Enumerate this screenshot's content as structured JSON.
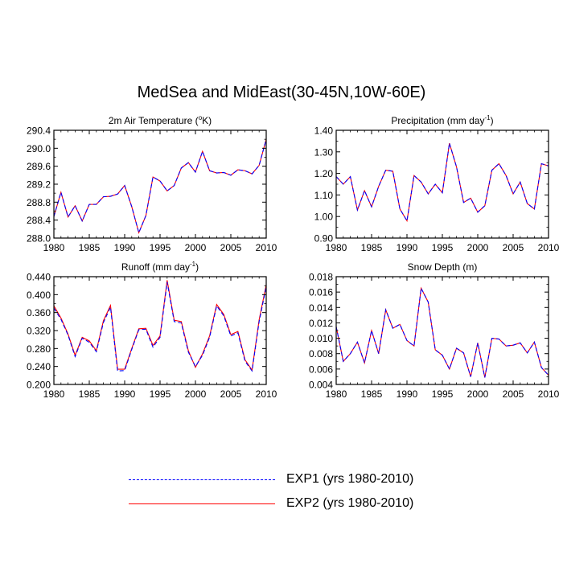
{
  "title": "MedSea and MidEast(30-45N,10W-60E)",
  "colors": {
    "exp1": "#0000ff",
    "exp2": "#ff0000",
    "axis": "#000000"
  },
  "legend": [
    {
      "label": "EXP1 (yrs 1980-2010)",
      "style": "dashed",
      "color": "#0000ff"
    },
    {
      "label": "EXP2 (yrs 1980-2010)",
      "style": "solid",
      "color": "#ff0000"
    }
  ],
  "chart_data": [
    {
      "type": "line",
      "title": "2m Air Temperature (",
      "title_sup": "o",
      "title_end": "K)",
      "xlabel": "",
      "ylabel": "",
      "xlim": [
        1980,
        2010
      ],
      "ylim": [
        288.0,
        290.4
      ],
      "xticks": [
        1980,
        1985,
        1990,
        1995,
        2000,
        2005,
        2010
      ],
      "yticks": [
        288.0,
        288.4,
        288.8,
        289.2,
        289.6,
        290.0,
        290.4
      ],
      "ytick_labels": [
        "288.0",
        "288.4",
        "288.8",
        "289.2",
        "289.6",
        "290.0",
        "290.4"
      ],
      "x": [
        1980,
        1981,
        1982,
        1983,
        1984,
        1985,
        1986,
        1987,
        1988,
        1989,
        1990,
        1991,
        1992,
        1993,
        1994,
        1995,
        1996,
        1997,
        1998,
        1999,
        2000,
        2001,
        2002,
        2003,
        2004,
        2005,
        2006,
        2007,
        2008,
        2009,
        2010
      ],
      "series": [
        {
          "name": "EXP1 (yrs 1980-2010)",
          "values": [
            288.48,
            289.02,
            288.47,
            288.72,
            288.38,
            288.75,
            288.75,
            288.92,
            288.93,
            288.98,
            289.17,
            288.7,
            288.12,
            288.5,
            289.36,
            289.27,
            289.05,
            289.17,
            289.56,
            289.68,
            289.47,
            289.93,
            289.5,
            289.45,
            289.46,
            289.4,
            289.52,
            289.5,
            289.43,
            289.62,
            290.2
          ]
        },
        {
          "name": "EXP2 (yrs 1980-2010)",
          "values": [
            288.48,
            289.02,
            288.47,
            288.72,
            288.38,
            288.75,
            288.75,
            288.92,
            288.93,
            288.98,
            289.17,
            288.7,
            288.12,
            288.5,
            289.36,
            289.27,
            289.05,
            289.17,
            289.56,
            289.68,
            289.47,
            289.93,
            289.5,
            289.45,
            289.46,
            289.4,
            289.52,
            289.5,
            289.43,
            289.62,
            290.2
          ]
        }
      ]
    },
    {
      "type": "line",
      "title": "Precipitation (mm day",
      "title_sup": "-1",
      "title_end": ")",
      "xlabel": "",
      "ylabel": "",
      "xlim": [
        1980,
        2010
      ],
      "ylim": [
        0.9,
        1.4
      ],
      "xticks": [
        1980,
        1985,
        1990,
        1995,
        2000,
        2005,
        2010
      ],
      "yticks": [
        0.9,
        1.0,
        1.1,
        1.2,
        1.3,
        1.4
      ],
      "ytick_labels": [
        "0.90",
        "1.00",
        "1.10",
        "1.20",
        "1.30",
        "1.40"
      ],
      "x": [
        1980,
        1981,
        1982,
        1983,
        1984,
        1985,
        1986,
        1987,
        1988,
        1989,
        1990,
        1991,
        1992,
        1993,
        1994,
        1995,
        1996,
        1997,
        1998,
        1999,
        2000,
        2001,
        2002,
        2003,
        2004,
        2005,
        2006,
        2007,
        2008,
        2009,
        2010
      ],
      "series": [
        {
          "name": "EXP1 (yrs 1980-2010)",
          "values": [
            1.185,
            1.15,
            1.185,
            1.03,
            1.12,
            1.045,
            1.14,
            1.215,
            1.21,
            1.035,
            0.98,
            1.19,
            1.16,
            1.105,
            1.15,
            1.11,
            1.34,
            1.23,
            1.065,
            1.085,
            1.02,
            1.05,
            1.215,
            1.245,
            1.19,
            1.105,
            1.16,
            1.06,
            1.035,
            1.245,
            1.235
          ]
        },
        {
          "name": "EXP2 (yrs 1980-2010)",
          "values": [
            1.185,
            1.15,
            1.185,
            1.03,
            1.12,
            1.045,
            1.14,
            1.215,
            1.21,
            1.035,
            0.98,
            1.19,
            1.16,
            1.105,
            1.15,
            1.11,
            1.34,
            1.23,
            1.065,
            1.085,
            1.02,
            1.05,
            1.215,
            1.245,
            1.19,
            1.105,
            1.16,
            1.06,
            1.035,
            1.245,
            1.235
          ]
        }
      ]
    },
    {
      "type": "line",
      "title": "Runoff (mm day",
      "title_sup": "-1",
      "title_end": ")",
      "xlabel": "",
      "ylabel": "",
      "xlim": [
        1980,
        2010
      ],
      "ylim": [
        0.2,
        0.44
      ],
      "xticks": [
        1980,
        1985,
        1990,
        1995,
        2000,
        2005,
        2010
      ],
      "yticks": [
        0.2,
        0.24,
        0.28,
        0.32,
        0.36,
        0.4,
        0.44
      ],
      "ytick_labels": [
        "0.200",
        "0.240",
        "0.280",
        "0.320",
        "0.360",
        "0.400",
        "0.440"
      ],
      "x": [
        1980,
        1981,
        1982,
        1983,
        1984,
        1985,
        1986,
        1987,
        1988,
        1989,
        1990,
        1991,
        1992,
        1993,
        1994,
        1995,
        1996,
        1997,
        1998,
        1999,
        2000,
        2001,
        2002,
        2003,
        2004,
        2005,
        2006,
        2007,
        2008,
        2009,
        2010
      ],
      "series": [
        {
          "name": "EXP1 (yrs 1980-2010)",
          "values": [
            0.37,
            0.345,
            0.31,
            0.262,
            0.303,
            0.294,
            0.273,
            0.338,
            0.372,
            0.23,
            0.231,
            0.278,
            0.322,
            0.323,
            0.283,
            0.305,
            0.428,
            0.34,
            0.337,
            0.272,
            0.24,
            0.265,
            0.305,
            0.375,
            0.353,
            0.308,
            0.315,
            0.252,
            0.23,
            0.34,
            0.418
          ]
        },
        {
          "name": "EXP2 (yrs 1980-2010)",
          "values": [
            0.375,
            0.348,
            0.312,
            0.265,
            0.305,
            0.297,
            0.275,
            0.342,
            0.376,
            0.234,
            0.234,
            0.28,
            0.324,
            0.325,
            0.287,
            0.308,
            0.432,
            0.343,
            0.34,
            0.275,
            0.238,
            0.268,
            0.308,
            0.378,
            0.356,
            0.311,
            0.318,
            0.255,
            0.232,
            0.344,
            0.422
          ]
        }
      ]
    },
    {
      "type": "line",
      "title": "Snow Depth (m)",
      "title_sup": "",
      "title_end": "",
      "xlabel": "",
      "ylabel": "",
      "xlim": [
        1980,
        2010
      ],
      "ylim": [
        0.004,
        0.018
      ],
      "xticks": [
        1980,
        1985,
        1990,
        1995,
        2000,
        2005,
        2010
      ],
      "yticks": [
        0.004,
        0.006,
        0.008,
        0.01,
        0.012,
        0.014,
        0.016,
        0.018
      ],
      "ytick_labels": [
        "0.004",
        "0.006",
        "0.008",
        "0.010",
        "0.012",
        "0.014",
        "0.016",
        "0.018"
      ],
      "x": [
        1980,
        1981,
        1982,
        1983,
        1984,
        1985,
        1986,
        1987,
        1988,
        1989,
        1990,
        1991,
        1992,
        1993,
        1994,
        1995,
        1996,
        1997,
        1998,
        1999,
        2000,
        2001,
        2002,
        2003,
        2004,
        2005,
        2006,
        2007,
        2008,
        2009,
        2010
      ],
      "series": [
        {
          "name": "EXP1 (yrs 1980-2010)",
          "values": [
            0.0115,
            0.007,
            0.008,
            0.0095,
            0.0068,
            0.011,
            0.008,
            0.0137,
            0.0113,
            0.0118,
            0.0097,
            0.009,
            0.0165,
            0.0147,
            0.0085,
            0.0078,
            0.006,
            0.0087,
            0.0081,
            0.005,
            0.0094,
            0.0049,
            0.01,
            0.0099,
            0.009,
            0.0091,
            0.0094,
            0.0081,
            0.0095,
            0.0062,
            0.0052
          ]
        },
        {
          "name": "EXP2 (yrs 1980-2010)",
          "values": [
            0.0115,
            0.007,
            0.008,
            0.0095,
            0.0068,
            0.011,
            0.008,
            0.0137,
            0.0113,
            0.0118,
            0.0097,
            0.009,
            0.0165,
            0.0147,
            0.0085,
            0.0078,
            0.006,
            0.0087,
            0.0081,
            0.005,
            0.0094,
            0.0049,
            0.01,
            0.0099,
            0.009,
            0.0091,
            0.0094,
            0.0081,
            0.0095,
            0.0062,
            0.0052
          ]
        }
      ]
    }
  ]
}
